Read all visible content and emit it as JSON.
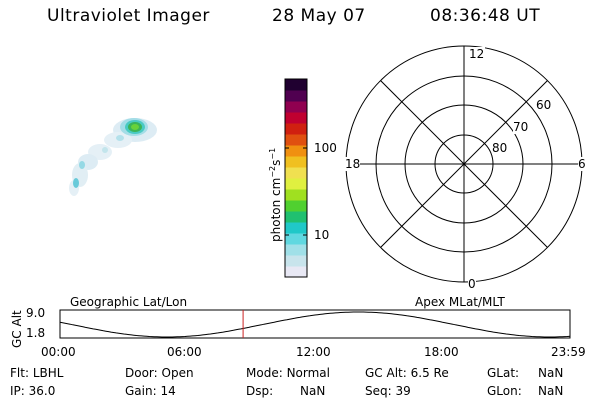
{
  "header": {
    "instrument": "Ultraviolet Imager",
    "date": "28 May 07",
    "time": "08:36:48 UT"
  },
  "colorbar": {
    "unit_label": "photon cm",
    "unit_exp1": "−2",
    "unit_mid": "s",
    "unit_exp2": "−1",
    "tick_100": "100",
    "tick_10": "10",
    "colors": [
      "#e8e8f4",
      "#c8e4ec",
      "#a0e0e8",
      "#60d8e0",
      "#20c8c8",
      "#20c070",
      "#50d030",
      "#a0e020",
      "#e0f040",
      "#f0e050",
      "#f0c020",
      "#f09010",
      "#e05010",
      "#d02010",
      "#c00030",
      "#900050",
      "#500050",
      "#200030"
    ]
  },
  "polar": {
    "mlt_12": "12",
    "mlt_18": "18",
    "mlt_6": "6",
    "mlt_0": "0",
    "lat_60": "60",
    "lat_70": "70",
    "lat_80": "80"
  },
  "timeline": {
    "left_label": "Geographic Lat/Lon",
    "right_label": "Apex MLat/MLT",
    "ylabel": "GC Alt",
    "ytick_top": "9.0",
    "ytick_bottom": "1.8",
    "xticks": [
      "00:00",
      "06:00",
      "12:00",
      "18:00",
      "23:59"
    ],
    "marker_color": "#cc2222",
    "current_fraction": 0.359
  },
  "info": {
    "row1": {
      "filt_label": "Flt:",
      "filt": "LBHL",
      "door_label": "Door:",
      "door": "Open",
      "mode_label": "Mode:",
      "mode": "Normal",
      "gcalt_label": "GC Alt:",
      "gcalt": "6.5 Re",
      "glat_label": "GLat:",
      "glat": "NaN"
    },
    "row2": {
      "ip_label": "IP:",
      "ip": "36.0",
      "gain_label": "Gain:",
      "gain": "14",
      "dsp_label": "Dsp:",
      "dsp": "NaN",
      "seq_label": "Seq:",
      "seq": "39",
      "glon_label": "GLon:",
      "glon": "NaN"
    }
  }
}
